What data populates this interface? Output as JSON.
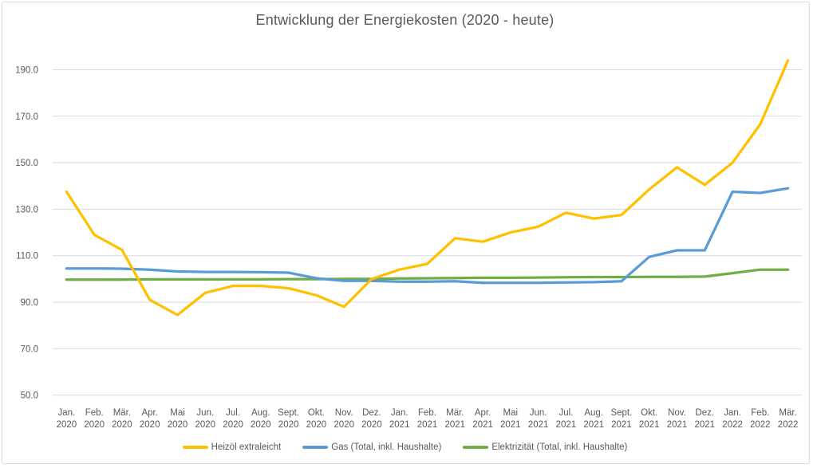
{
  "chart_data": {
    "type": "line",
    "title": "Entwicklung der Energiekosten (2020 - heute)",
    "grid": true,
    "legend_position": "bottom",
    "colors": {
      "grid": "#D9D9D9",
      "text": "#595959",
      "frame_border": "#D9D9D9",
      "background": "#FFFFFF"
    },
    "y_axis": {
      "min": 50,
      "max": 190,
      "step": 20,
      "tick_labels": [
        "50.0",
        "70.0",
        "90.0",
        "110.0",
        "130.0",
        "150.0",
        "170.0",
        "190.0"
      ]
    },
    "categories": [
      {
        "month": "Jan.",
        "year": "2020"
      },
      {
        "month": "Feb.",
        "year": "2020"
      },
      {
        "month": "Mär.",
        "year": "2020"
      },
      {
        "month": "Apr.",
        "year": "2020"
      },
      {
        "month": "Mai",
        "year": "2020"
      },
      {
        "month": "Jun.",
        "year": "2020"
      },
      {
        "month": "Jul.",
        "year": "2020"
      },
      {
        "month": "Aug.",
        "year": "2020"
      },
      {
        "month": "Sept.",
        "year": "2020"
      },
      {
        "month": "Okt.",
        "year": "2020"
      },
      {
        "month": "Nov.",
        "year": "2020"
      },
      {
        "month": "Dez.",
        "year": "2020"
      },
      {
        "month": "Jan.",
        "year": "2021"
      },
      {
        "month": "Feb.",
        "year": "2021"
      },
      {
        "month": "Mär.",
        "year": "2021"
      },
      {
        "month": "Apr.",
        "year": "2021"
      },
      {
        "month": "Mai",
        "year": "2021"
      },
      {
        "month": "Jun.",
        "year": "2021"
      },
      {
        "month": "Jul.",
        "year": "2021"
      },
      {
        "month": "Aug.",
        "year": "2021"
      },
      {
        "month": "Sept.",
        "year": "2021"
      },
      {
        "month": "Okt.",
        "year": "2021"
      },
      {
        "month": "Nov.",
        "year": "2021"
      },
      {
        "month": "Dez.",
        "year": "2021"
      },
      {
        "month": "Jan.",
        "year": "2022"
      },
      {
        "month": "Feb.",
        "year": "2022"
      },
      {
        "month": "Mär.",
        "year": "2022"
      }
    ],
    "series": [
      {
        "name": "Heizöl extraleicht",
        "color": "#FFC000",
        "values": [
          137.5,
          119,
          112.5,
          91,
          84.5,
          94,
          97,
          97,
          96,
          93,
          88,
          100,
          104,
          106.5,
          117.5,
          116,
          120,
          122.5,
          128.5,
          126,
          127.5,
          138.5,
          148,
          140.5,
          150,
          166.5,
          194
        ]
      },
      {
        "name": "Gas (Total, inkl. Haushalte)",
        "color": "#5B9BD5",
        "values": [
          104.5,
          104.5,
          104.4,
          104,
          103.2,
          103,
          103,
          102.9,
          102.7,
          100.3,
          99.2,
          99.2,
          98.8,
          98.8,
          99,
          98.3,
          98.3,
          98.3,
          98.5,
          98.6,
          99,
          109.5,
          112.3,
          112.3,
          137.5,
          137,
          139
        ]
      },
      {
        "name": "Elektrizität (Total, inkl. Haushalte)",
        "color": "#70AD47",
        "values": [
          99.7,
          99.7,
          99.7,
          99.8,
          99.8,
          99.8,
          99.8,
          99.8,
          99.9,
          99.9,
          100,
          100,
          100.2,
          100.3,
          100.4,
          100.5,
          100.5,
          100.6,
          100.7,
          100.8,
          100.8,
          100.9,
          100.9,
          101,
          102.5,
          104,
          104
        ]
      }
    ]
  }
}
